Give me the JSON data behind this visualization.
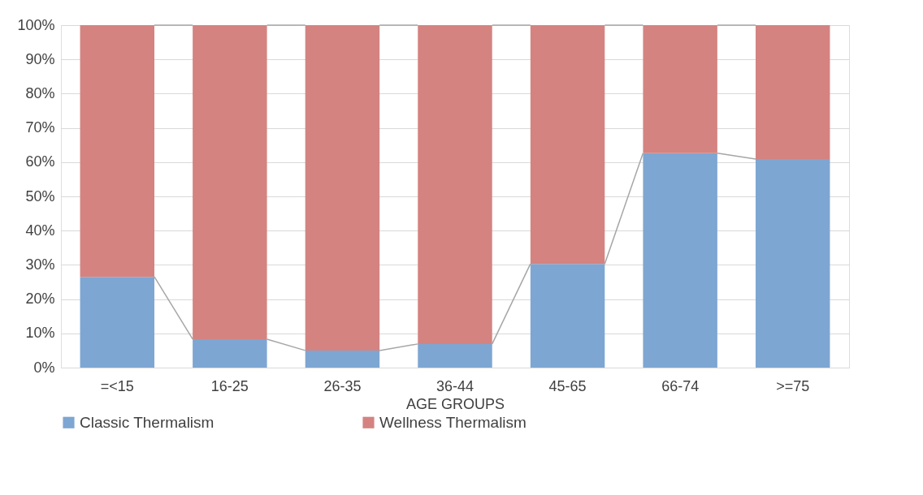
{
  "chart_data": {
    "type": "bar",
    "stacked": true,
    "xlabel": "AGE GROUPS",
    "categories": [
      "=<15",
      "16-25",
      "26-35",
      "36-44",
      "45-65",
      "66-74",
      ">=75"
    ],
    "series": [
      {
        "name": "Classic Thermalism",
        "color": "#7ea6d2",
        "values": [
          26.5,
          8.3,
          5.0,
          6.9,
          30.3,
          62.6,
          60.9
        ]
      },
      {
        "name": "Wellness Thermalism",
        "color": "#d48381",
        "values": [
          73.5,
          91.7,
          95.0,
          93.1,
          69.7,
          37.4,
          39.1
        ]
      }
    ],
    "ylim": [
      0,
      100
    ],
    "yticks": [
      {
        "value": 0,
        "label": "0%"
      },
      {
        "value": 10,
        "label": "10%"
      },
      {
        "value": 20,
        "label": "20%"
      },
      {
        "value": 30,
        "label": "30%"
      },
      {
        "value": 40,
        "label": "40%"
      },
      {
        "value": 50,
        "label": "50%"
      },
      {
        "value": 60,
        "label": "60%"
      },
      {
        "value": 70,
        "label": "70%"
      },
      {
        "value": 80,
        "label": "80%"
      },
      {
        "value": 90,
        "label": "90%"
      },
      {
        "value": 100,
        "label": "100%"
      }
    ],
    "grid": "y",
    "legend": "bottom"
  }
}
